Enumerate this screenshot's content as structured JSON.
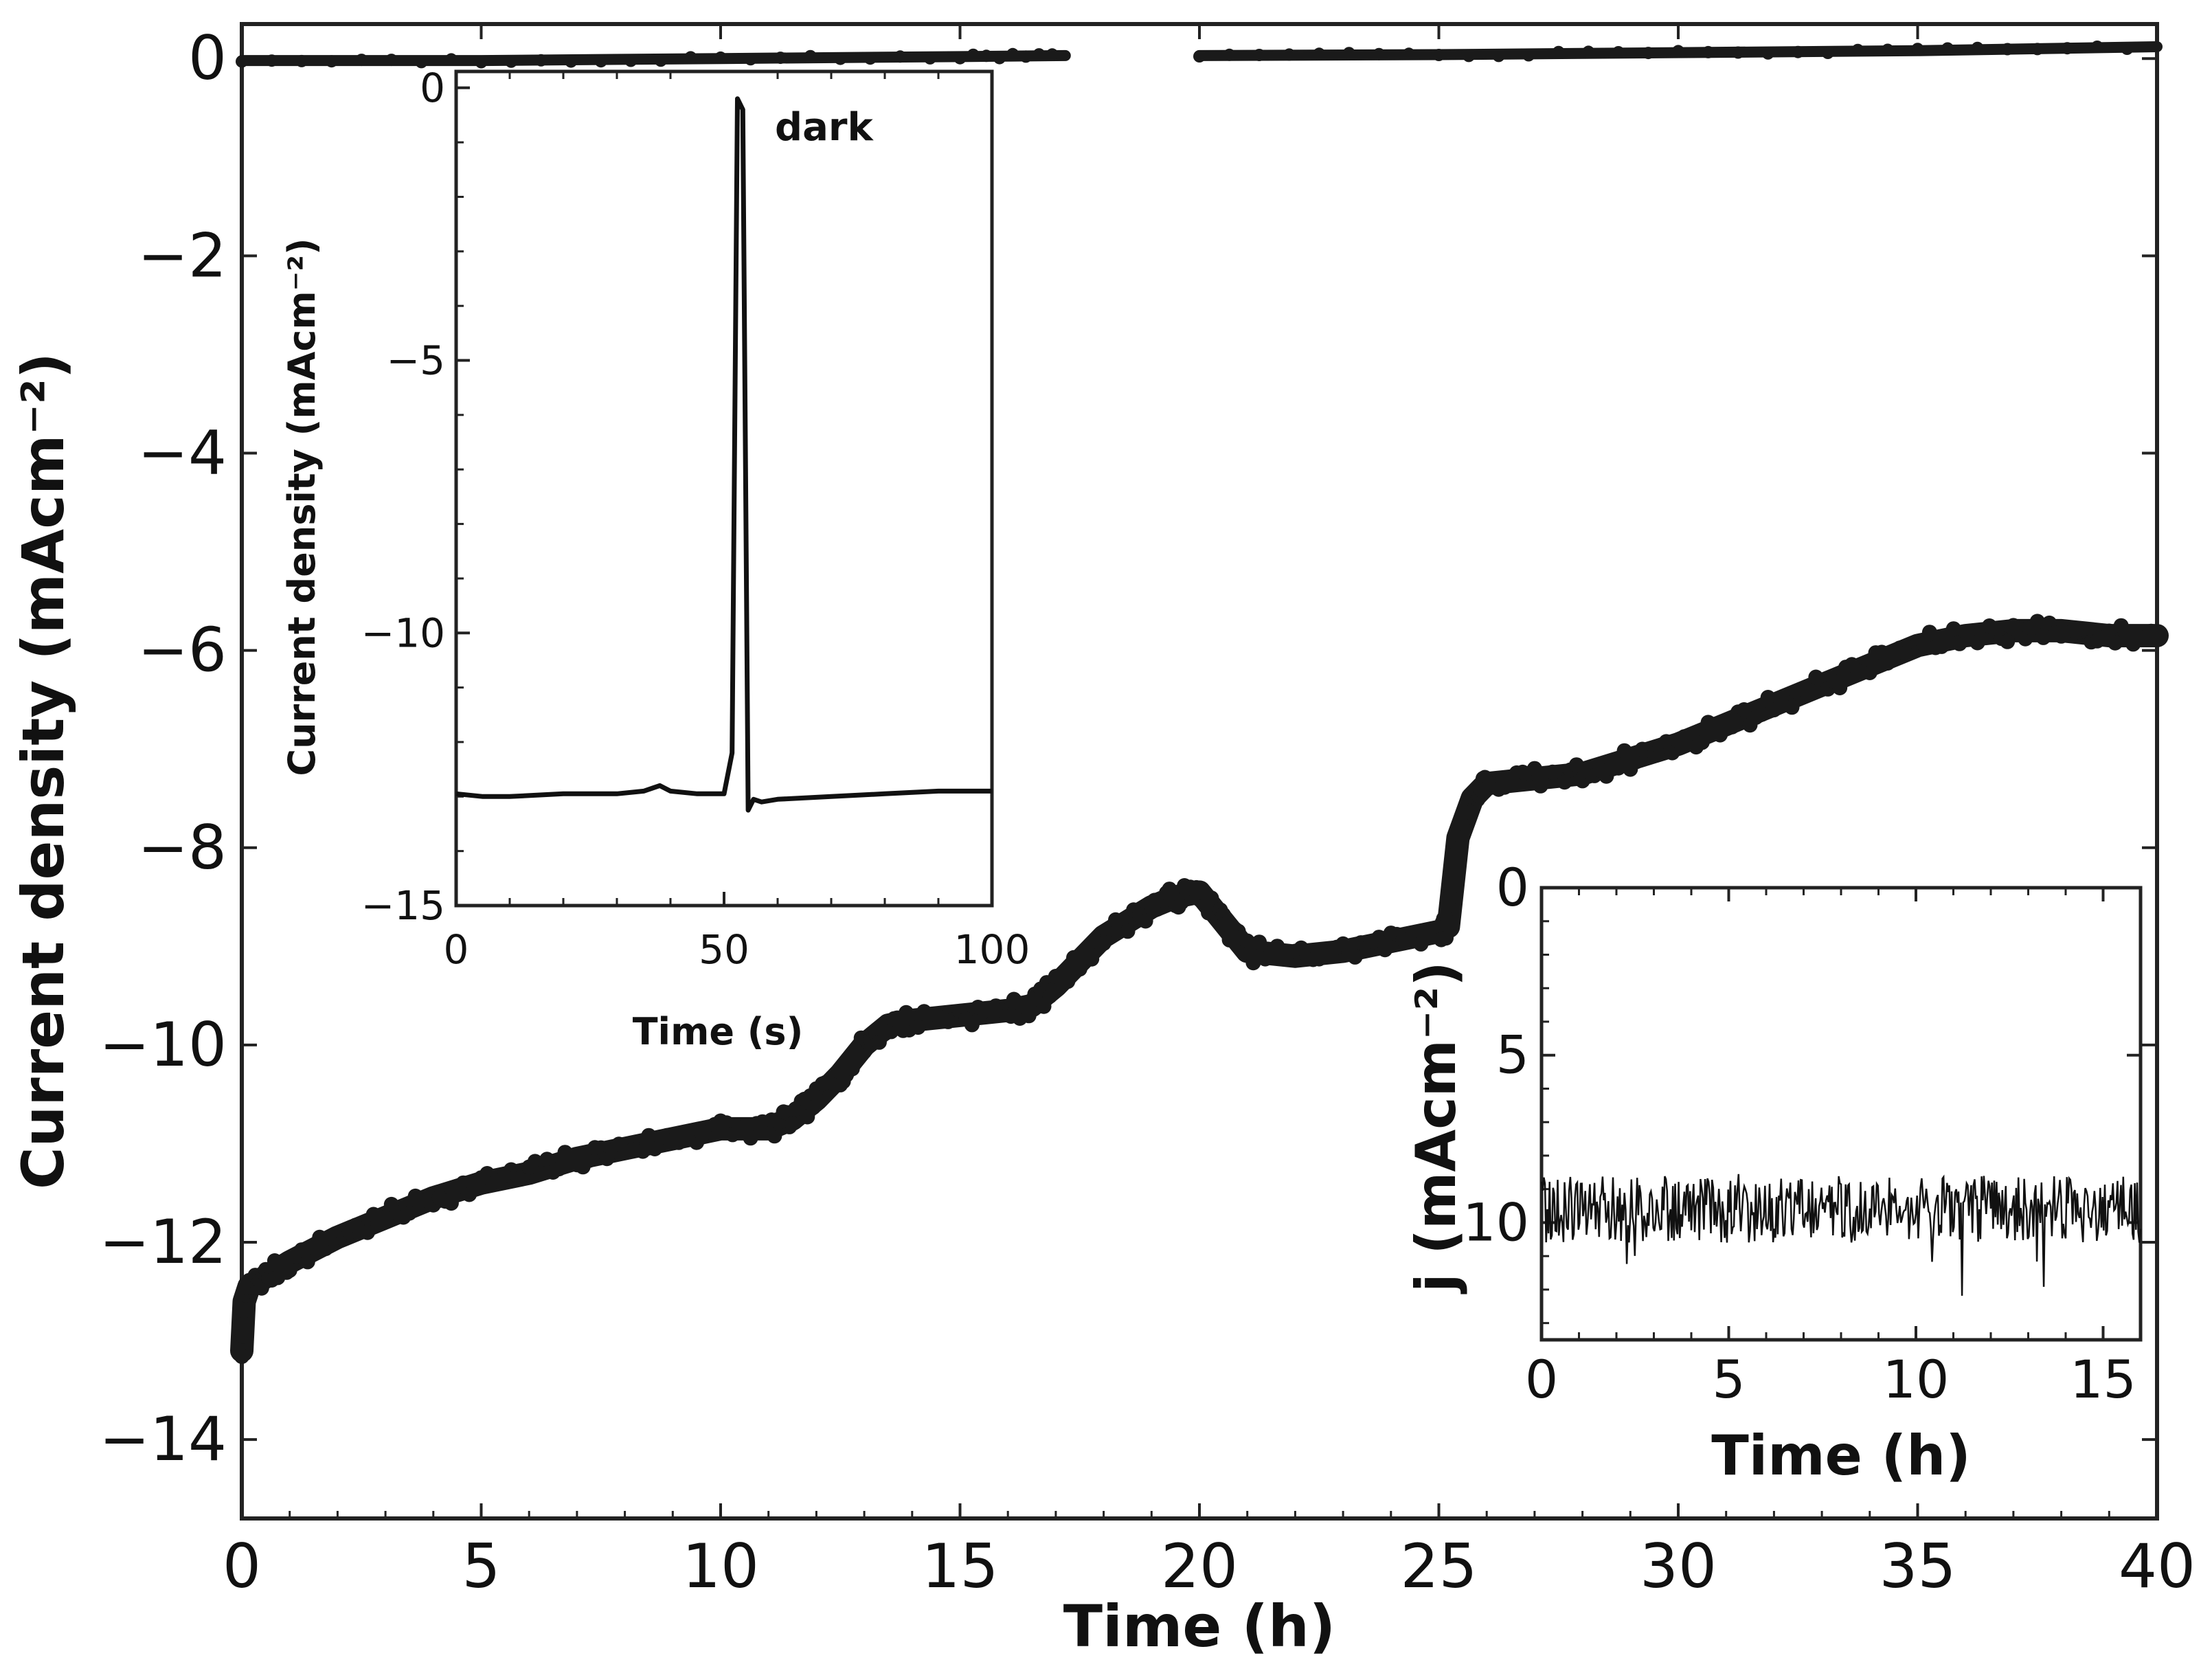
{
  "chart_data": [
    {
      "type": "line",
      "title": "",
      "xlabel": "Time (h)",
      "ylabel": "Current density (mAcm⁻²)",
      "xlim": [
        0,
        40
      ],
      "ylim": [
        -14.8,
        0.35
      ],
      "xticks": [
        "0",
        "5",
        "10",
        "15",
        "20",
        "25",
        "30",
        "35",
        "40"
      ],
      "yticks": [
        "0",
        "−2",
        "−4",
        "−6",
        "−8",
        "−10",
        "−12",
        "−14"
      ],
      "grid": false,
      "series": [
        {
          "values_kind": "photocurrent",
          "x": [
            0,
            0.05,
            0.15,
            0.5,
            1,
            2,
            3,
            4,
            5,
            6,
            7,
            8,
            9,
            10,
            11,
            11.5,
            12,
            12.5,
            13,
            13.5,
            14,
            15,
            16,
            16.5,
            17,
            18,
            19,
            19.5,
            20,
            20.5,
            21,
            22,
            23,
            24,
            25,
            25.2,
            25.4,
            25.7,
            26,
            27,
            28,
            29,
            30,
            31,
            32,
            33,
            34,
            35,
            36,
            37,
            38,
            39,
            40
          ],
          "y": [
            -13.1,
            -12.6,
            -12.45,
            -12.35,
            -12.2,
            -11.95,
            -11.75,
            -11.55,
            -11.4,
            -11.3,
            -11.15,
            -11.05,
            -10.95,
            -10.85,
            -10.85,
            -10.75,
            -10.55,
            -10.3,
            -10.0,
            -9.8,
            -9.75,
            -9.7,
            -9.65,
            -9.6,
            -9.4,
            -8.9,
            -8.6,
            -8.5,
            -8.45,
            -8.75,
            -9.05,
            -9.1,
            -9.05,
            -8.95,
            -8.85,
            -8.8,
            -7.9,
            -7.5,
            -7.35,
            -7.3,
            -7.25,
            -7.1,
            -6.95,
            -6.75,
            -6.55,
            -6.35,
            -6.15,
            -5.95,
            -5.85,
            -5.8,
            -5.8,
            -5.85,
            -5.85
          ]
        },
        {
          "values_kind": "dark-current-segment-1",
          "x": [
            0,
            5,
            10,
            15,
            17.2
          ],
          "y": [
            -0.02,
            -0.02,
            0.0,
            0.02,
            0.03
          ]
        },
        {
          "values_kind": "dark-current-segment-2",
          "x": [
            20,
            25,
            30,
            35,
            40
          ],
          "y": [
            0.03,
            0.04,
            0.06,
            0.08,
            0.12
          ]
        }
      ]
    },
    {
      "type": "line",
      "title": "",
      "xlabel": "Time (s)",
      "ylabel": "Current density (mAcm⁻²)",
      "xlim": [
        0,
        100
      ],
      "ylim": [
        -15,
        0.3
      ],
      "xticks": [
        "0",
        "50",
        "100"
      ],
      "yticks": [
        "0",
        "−5",
        "−10",
        "−15"
      ],
      "annotation": "dark",
      "grid": false,
      "series": [
        {
          "x": [
            0,
            5,
            10,
            20,
            30,
            35,
            38,
            40,
            45,
            50,
            51.5,
            52.5,
            53.5,
            54.5,
            55.5,
            57,
            60,
            70,
            80,
            90,
            100
          ],
          "y": [
            -12.95,
            -13.0,
            -13.0,
            -12.95,
            -12.95,
            -12.9,
            -12.8,
            -12.9,
            -12.95,
            -12.95,
            -12.2,
            -0.2,
            -0.4,
            -13.25,
            -13.05,
            -13.1,
            -13.05,
            -13.0,
            -12.95,
            -12.9,
            -12.9
          ]
        }
      ]
    },
    {
      "type": "line",
      "title": "",
      "xlabel": "Time (h)",
      "ylabel": "j (mAcm⁻²)",
      "xlim": [
        0,
        16
      ],
      "ylim": [
        0,
        13.5
      ],
      "y_inverted": true,
      "xticks": [
        "0",
        "5",
        "10",
        "15"
      ],
      "yticks": [
        "0",
        "5",
        "10"
      ],
      "grid": false,
      "series": [
        {
          "mean": 9.6,
          "noise_amplitude": 1.0,
          "x_range": [
            0,
            16
          ]
        }
      ]
    }
  ]
}
